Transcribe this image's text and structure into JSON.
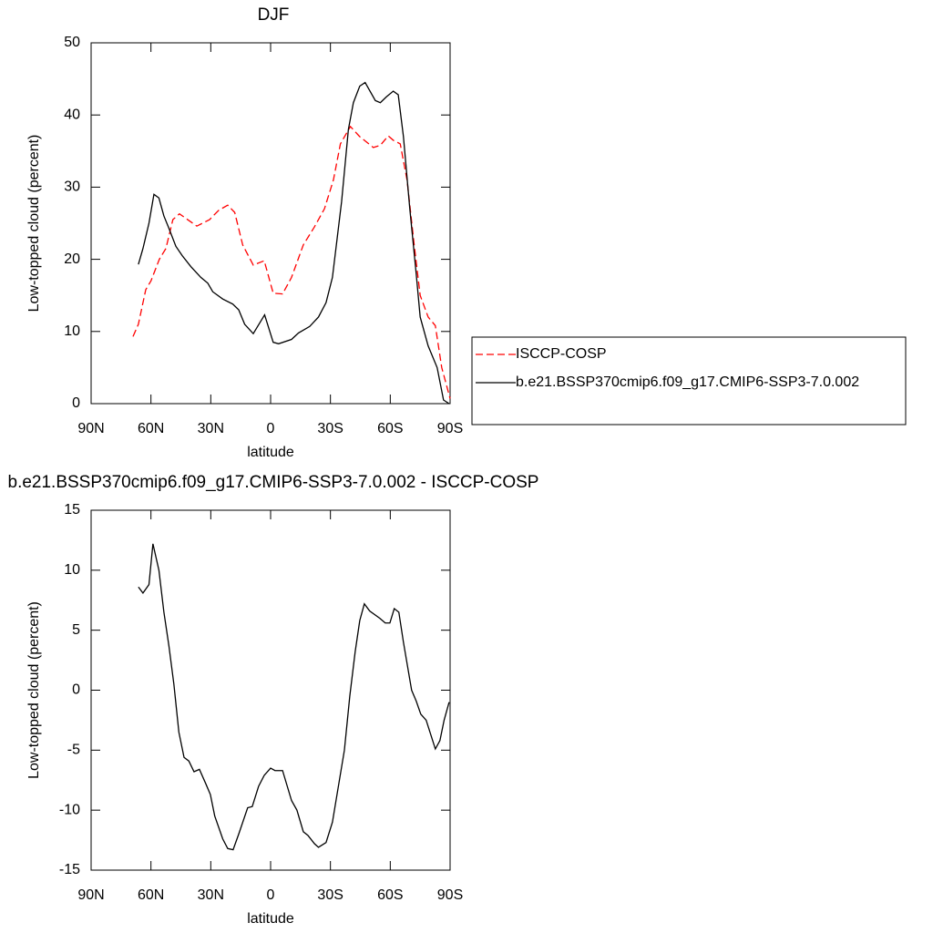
{
  "chart_data": [
    {
      "type": "line",
      "title": "DJF",
      "xlabel": "latitude",
      "ylabel": "Low-topped cloud (percent)",
      "xlim": [
        90,
        -90
      ],
      "xticks": [
        {
          "value": 90,
          "label": "90N"
        },
        {
          "value": 60,
          "label": "60N"
        },
        {
          "value": 30,
          "label": "30N"
        },
        0,
        {
          "value": -30,
          "label": "30S"
        },
        {
          "value": -60,
          "label": "60S"
        },
        {
          "value": -90,
          "label": "90S"
        }
      ],
      "ylim": [
        0,
        50
      ],
      "yticks": [
        0,
        10,
        20,
        30,
        40,
        50
      ],
      "legend": "right",
      "series": [
        {
          "name": "ISCCP-COSP",
          "color": "#ff0000",
          "dashed": true,
          "x": [
            69,
            66.3,
            62.6,
            60,
            55.8,
            52.5,
            49,
            45.7,
            41.6,
            37,
            30.6,
            26,
            21.5,
            18,
            14,
            8.7,
            3.2,
            -1.3,
            -6,
            -10.5,
            -16.4,
            -22,
            -27,
            -31.5,
            -35,
            -40,
            -44.7,
            -51.5,
            -55,
            -59,
            -61.5,
            -65,
            -68.4,
            -72,
            -75,
            -79,
            -82.6,
            -85.8,
            -90
          ],
          "values": [
            9.3,
            11,
            15.8,
            17,
            20,
            21.5,
            25.5,
            26.3,
            25.5,
            24.6,
            25.5,
            26.8,
            27.5,
            26.5,
            22,
            19.2,
            19.8,
            15.3,
            15.2,
            17.5,
            22,
            24.5,
            27,
            31,
            36,
            38.4,
            37,
            35.5,
            35.8,
            37.1,
            36.5,
            36,
            31,
            22,
            15,
            12,
            10.8,
            5,
            0.7
          ]
        },
        {
          "name": "b.e21.BSSP370cmip6.f09_g17.CMIP6-SSP3-7.0.002",
          "color": "#000000",
          "dashed": false,
          "x": [
            66.3,
            64,
            61,
            58.5,
            56,
            53.5,
            51,
            47.5,
            44.3,
            40,
            35,
            31.5,
            29,
            24,
            19,
            16,
            13,
            8.7,
            3,
            -1.3,
            -4,
            -10.5,
            -14,
            -19.6,
            -24,
            -27.8,
            -31,
            -35.6,
            -39,
            -41.5,
            -44.7,
            -47.4,
            -52.5,
            -55,
            -58,
            -61.5,
            -64,
            -66.6,
            -69.8,
            -73,
            -75,
            -79,
            -83.5,
            -86.7,
            -89.5
          ],
          "values": [
            19.3,
            21.5,
            25,
            29,
            28.5,
            26,
            24.3,
            21.8,
            20.5,
            19,
            17.5,
            16.7,
            15.5,
            14.5,
            13.8,
            13,
            11,
            9.7,
            12.3,
            8.5,
            8.3,
            8.9,
            9.8,
            10.7,
            12,
            14,
            17.5,
            28,
            38,
            41.7,
            44,
            44.5,
            42,
            41.7,
            42.5,
            43.3,
            42.8,
            37,
            27,
            18,
            12,
            8,
            5,
            0.5,
            0
          ]
        }
      ]
    },
    {
      "type": "line",
      "title": "b.e21.BSSP370cmip6.f09_g17.CMIP6-SSP3-7.0.002 - ISCCP-COSP",
      "xlabel": "latitude",
      "ylabel": "Low-topped cloud (percent)",
      "xlim": [
        90,
        -90
      ],
      "xticks": [
        {
          "value": 90,
          "label": "90N"
        },
        {
          "value": 60,
          "label": "60N"
        },
        {
          "value": 30,
          "label": "30N"
        },
        0,
        {
          "value": -30,
          "label": "30S"
        },
        {
          "value": -60,
          "label": "60S"
        },
        {
          "value": -90,
          "label": "90S"
        }
      ],
      "ylim": [
        -15,
        15
      ],
      "yticks": [
        -15,
        -10,
        -5,
        0,
        5,
        10,
        15
      ],
      "color": "#000000",
      "x": [
        66.3,
        64,
        61,
        59,
        56,
        53.5,
        51,
        48.5,
        46,
        43.4,
        41,
        38.4,
        35.7,
        32.5,
        30.2,
        28,
        24,
        21.5,
        18.8,
        16,
        11.5,
        9.2,
        6,
        3.2,
        0,
        -2.2,
        -6,
        -10.5,
        -13.2,
        -16.4,
        -18.7,
        -22,
        -24,
        -27.8,
        -31,
        -34,
        -37,
        -39.7,
        -42.4,
        -44.7,
        -47,
        -49.7,
        -54.7,
        -57.5,
        -59.8,
        -62,
        -64.3,
        -66.6,
        -70.7,
        -73,
        -75.3,
        -78,
        -82.6,
        -84.9,
        -87,
        -89.5
      ],
      "values": [
        8.6,
        8.1,
        8.8,
        12.2,
        10,
        6.5,
        3.7,
        0.5,
        -3.5,
        -5.6,
        -5.9,
        -6.8,
        -6.6,
        -7.8,
        -8.7,
        -10.5,
        -12.4,
        -13.2,
        -13.3,
        -12,
        -9.8,
        -9.7,
        -8,
        -7.1,
        -6.5,
        -6.7,
        -6.7,
        -9.2,
        -10,
        -11.8,
        -12.1,
        -12.8,
        -13.1,
        -12.7,
        -11,
        -8,
        -5,
        -0.5,
        3.2,
        5.8,
        7.2,
        6.6,
        6,
        5.6,
        5.6,
        6.8,
        6.5,
        4,
        0,
        -0.9,
        -2,
        -2.5,
        -4.9,
        -4.2,
        -2.5,
        -1
      ]
    }
  ]
}
